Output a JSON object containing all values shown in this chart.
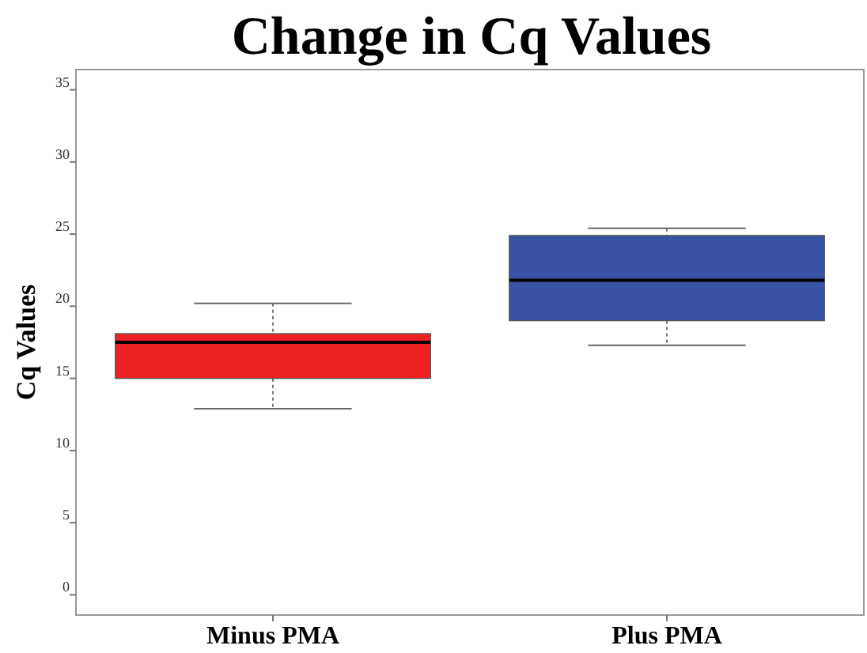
{
  "chart_data": {
    "type": "box",
    "title": "Change in Cq Values",
    "ylabel": "Cq Values",
    "categories": [
      "Minus PMA",
      "Plus PMA"
    ],
    "series": [
      {
        "colors": [
          "#ed2024",
          "#3953a4"
        ],
        "boxes": [
          {
            "low": 12.9,
            "q1": 15.0,
            "median": 17.5,
            "q3": 18.1,
            "high": 20.2
          },
          {
            "low": 17.3,
            "q1": 19.0,
            "median": 21.8,
            "q3": 24.9,
            "high": 25.4
          }
        ]
      }
    ],
    "ylim": [
      -1.4,
      36.4
    ],
    "yticks": [
      0,
      5,
      10,
      15,
      20,
      25,
      30,
      35
    ],
    "grid": false
  }
}
